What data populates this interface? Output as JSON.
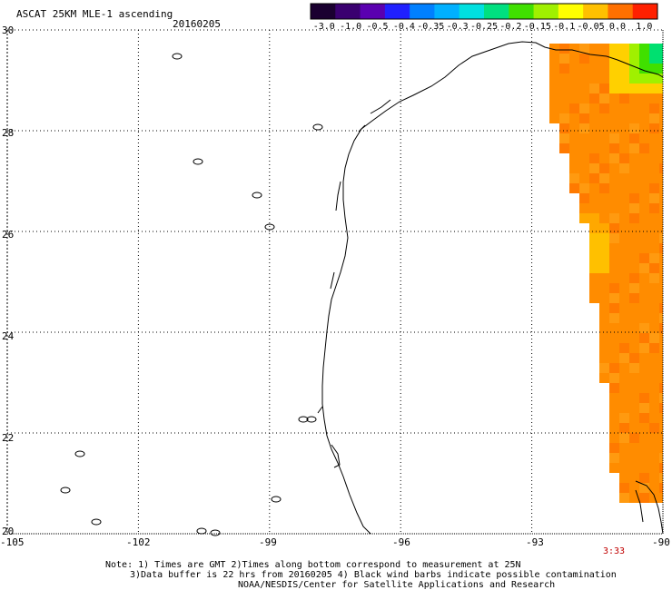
{
  "header": {
    "title": "ASCAT 25KM MLE-1 ascending",
    "date": "20160205"
  },
  "colorbar": {
    "labels": [
      "-3.0",
      "-1.0",
      "-0.5",
      "-0.4",
      "-0.35",
      "-0.3",
      "-0.25",
      "-0.2",
      "-0.15",
      "-0.1",
      "-0.05",
      "0.0",
      "1.0"
    ],
    "colors": [
      "#1a0030",
      "#3a0070",
      "#5a00b0",
      "#2020ff",
      "#0080ff",
      "#00b0ff",
      "#00e0e0",
      "#00e080",
      "#40e000",
      "#a0f000",
      "#ffff00",
      "#ffc000",
      "#ff7000",
      "#ff2000"
    ]
  },
  "map": {
    "lat_labels": [
      "30",
      "28",
      "26",
      "24",
      "22",
      "20"
    ],
    "lon_labels": [
      "-105",
      "-102",
      "-99",
      "-96",
      "-93",
      "-90"
    ],
    "pass_time": "3:33"
  },
  "footer": {
    "line1": "Note: 1) Times are GMT 2)Times along bottom correspond to measurement at 25N",
    "line2": "3)Data buffer is 22 hrs from 20160205 4) Black wind barbs indicate possible contamination",
    "line3": "NOAA/NESDIS/Center for Satellite Applications and Research"
  }
}
